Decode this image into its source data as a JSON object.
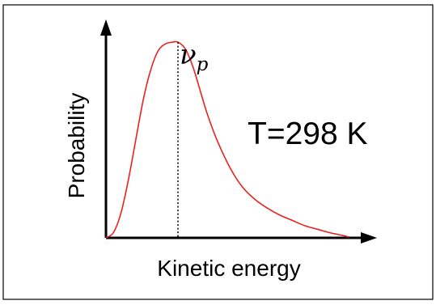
{
  "chart_data": {
    "type": "line",
    "title": "",
    "xlabel": "Kinetic energy",
    "ylabel": "Probability",
    "annotations": {
      "peak_symbol": "ν",
      "peak_subscript": "p",
      "temperature": "T=298 K"
    },
    "grid": false,
    "xticks": [],
    "yticks": [],
    "xlim": [
      0,
      10
    ],
    "ylim": [
      0,
      1.25
    ],
    "series": [
      {
        "color": "#e8231f",
        "x": [
          0,
          0.3,
          0.6,
          0.9,
          1.2,
          1.5,
          1.8,
          2.1,
          2.4,
          2.7,
          2.9,
          3.2,
          3.5,
          3.8,
          4.1,
          4.5,
          5.0,
          5.5,
          6.0,
          6.5,
          7.0,
          7.5,
          8.0,
          8.5,
          9.0,
          9.5,
          9.8
        ],
        "y": [
          0,
          0.03,
          0.14,
          0.33,
          0.56,
          0.79,
          0.96,
          1.07,
          1.11,
          1.12,
          1.12,
          1.08,
          0.98,
          0.84,
          0.7,
          0.55,
          0.4,
          0.29,
          0.22,
          0.17,
          0.13,
          0.1,
          0.07,
          0.05,
          0.03,
          0.015,
          0.005
        ]
      }
    ],
    "peak_x": 2.9
  }
}
